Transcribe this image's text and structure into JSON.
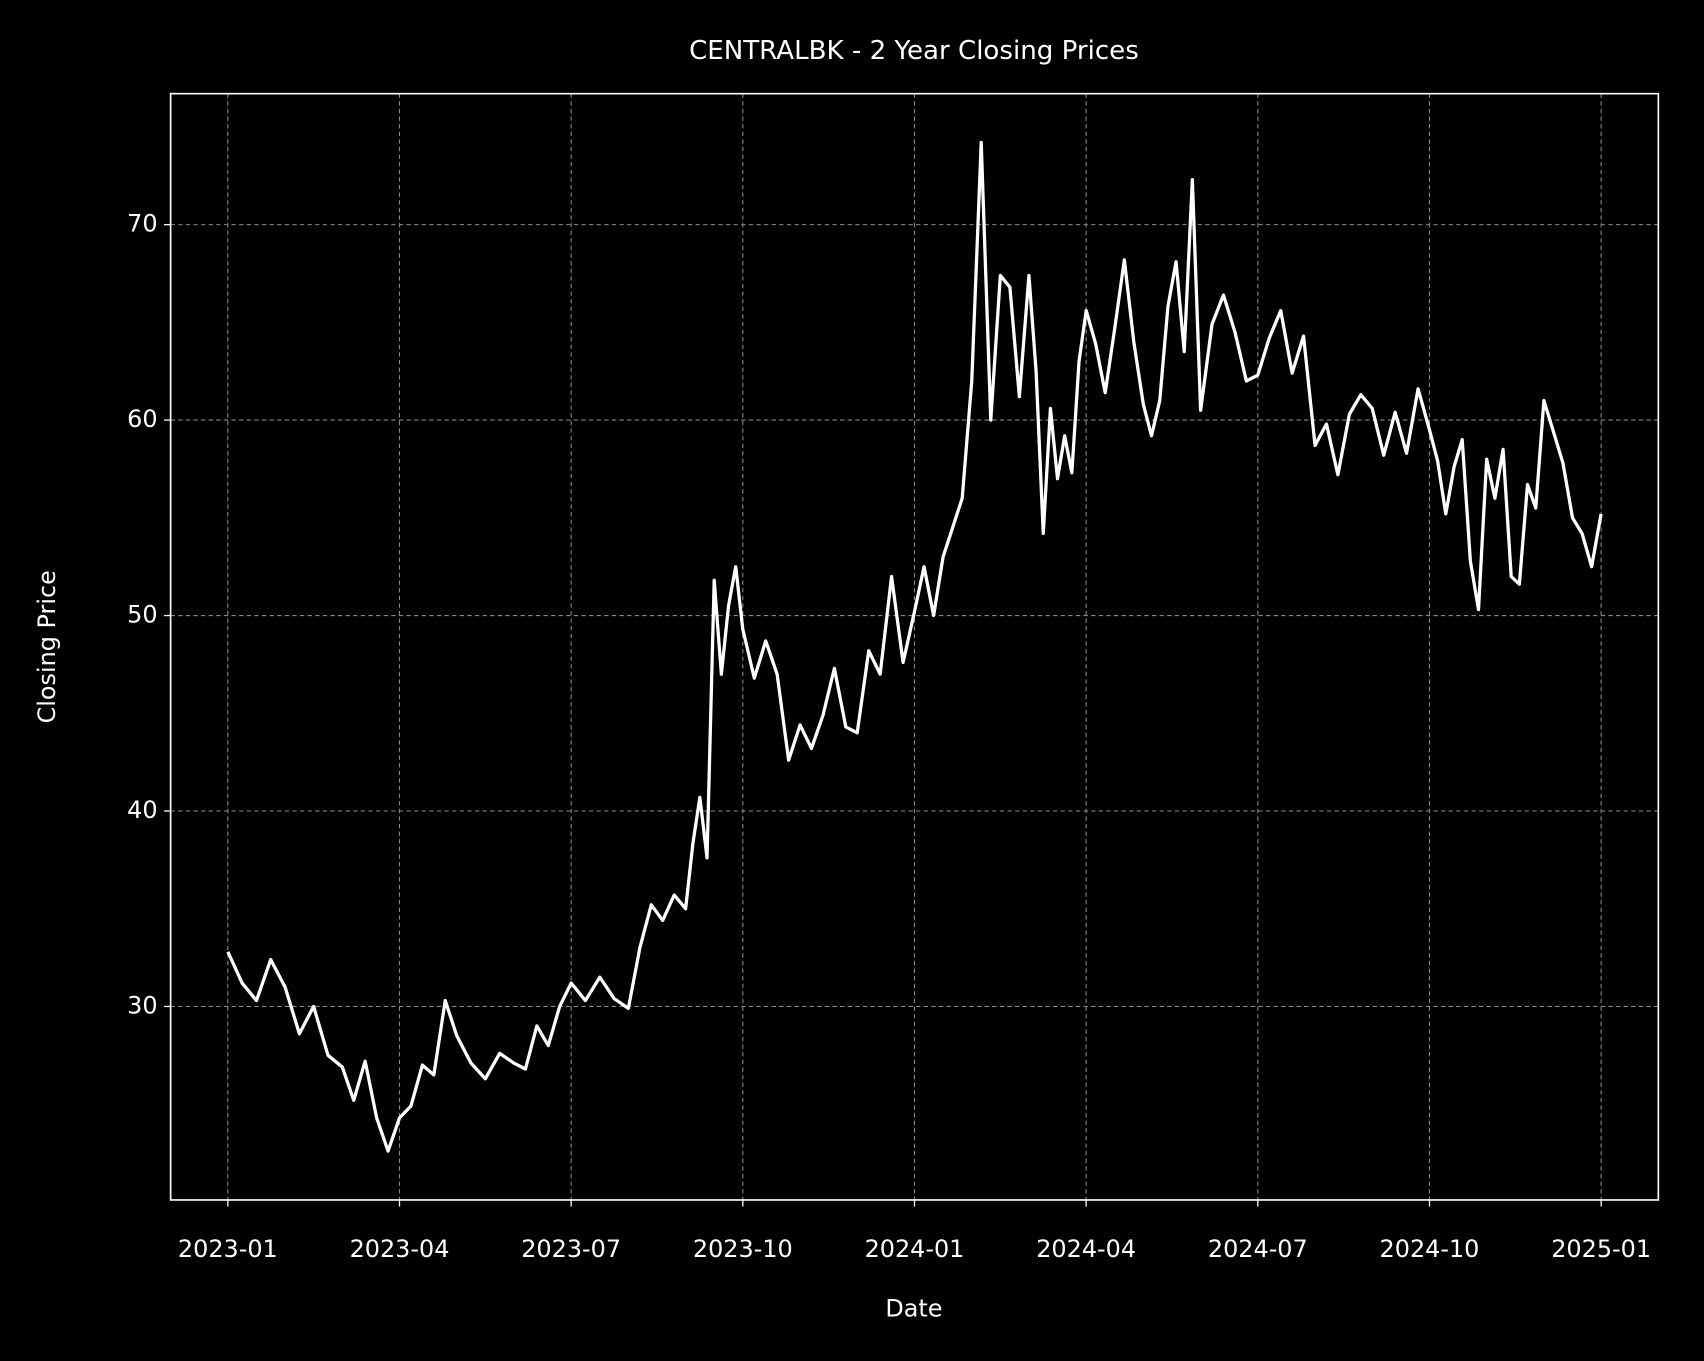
{
  "chart_data": {
    "type": "line",
    "title": "CENTRALBK - 2 Year Closing Prices",
    "x_label": "Date",
    "y_label": "Closing Price",
    "color": "#ffffff",
    "grid": true,
    "x": [
      "2023-01",
      "2023-01",
      "2023-01",
      "2023-01",
      "2023-02",
      "2023-02",
      "2023-02",
      "2023-02",
      "2023-03",
      "2023-03",
      "2023-03",
      "2023-03",
      "2023-03",
      "2023-04",
      "2023-04",
      "2023-04",
      "2023-04",
      "2023-04",
      "2023-05",
      "2023-05",
      "2023-05",
      "2023-05",
      "2023-06",
      "2023-06",
      "2023-06",
      "2023-06",
      "2023-06",
      "2023-07",
      "2023-07",
      "2023-07",
      "2023-07",
      "2023-08",
      "2023-08",
      "2023-08",
      "2023-08",
      "2023-08",
      "2023-09",
      "2023-09",
      "2023-09",
      "2023-09",
      "2023-09",
      "2023-09",
      "2023-09",
      "2023-09",
      "2023-10",
      "2023-10",
      "2023-10",
      "2023-10",
      "2023-10",
      "2023-11",
      "2023-11",
      "2023-11",
      "2023-11",
      "2023-11",
      "2023-12",
      "2023-12",
      "2023-12",
      "2023-12",
      "2023-12",
      "2024-01",
      "2024-01",
      "2024-01",
      "2024-01",
      "2024-01",
      "2024-01",
      "2024-02",
      "2024-02",
      "2024-02",
      "2024-02",
      "2024-02",
      "2024-02",
      "2024-03",
      "2024-03",
      "2024-03",
      "2024-03",
      "2024-03",
      "2024-03",
      "2024-03",
      "2024-03",
      "2024-04",
      "2024-04",
      "2024-04",
      "2024-04",
      "2024-04",
      "2024-04",
      "2024-05",
      "2024-05",
      "2024-05",
      "2024-05",
      "2024-05",
      "2024-05",
      "2024-05",
      "2024-06",
      "2024-06",
      "2024-06",
      "2024-06",
      "2024-06",
      "2024-07",
      "2024-07",
      "2024-07",
      "2024-07",
      "2024-07",
      "2024-08",
      "2024-08",
      "2024-08",
      "2024-08",
      "2024-08",
      "2024-09",
      "2024-09",
      "2024-09",
      "2024-09",
      "2024-09",
      "2024-10",
      "2024-10",
      "2024-10",
      "2024-10",
      "2024-10",
      "2024-10",
      "2024-10",
      "2024-11",
      "2024-11",
      "2024-11",
      "2024-11",
      "2024-11",
      "2024-11",
      "2024-11",
      "2024-12",
      "2024-12",
      "2024-12",
      "2024-12",
      "2024-12",
      "2024-12",
      "2025-01"
    ],
    "values": [
      32.8,
      31.2,
      30.3,
      32.4,
      31.0,
      28.6,
      30.0,
      27.5,
      26.9,
      25.2,
      27.2,
      24.3,
      22.6,
      24.3,
      24.9,
      27.0,
      26.5,
      30.3,
      28.5,
      27.1,
      26.3,
      27.6,
      27.1,
      26.8,
      29.0,
      28.0,
      30.0,
      31.2,
      30.3,
      31.5,
      30.4,
      29.9,
      33.0,
      35.2,
      34.4,
      35.7,
      35.0,
      38.3,
      40.7,
      37.6,
      51.8,
      47.0,
      50.5,
      52.5,
      49.3,
      46.8,
      48.7,
      47.0,
      42.6,
      44.4,
      43.2,
      44.9,
      47.3,
      44.3,
      44.0,
      48.2,
      47.0,
      52.0,
      47.6,
      50.2,
      52.5,
      50.0,
      53.0,
      54.5,
      56.0,
      62.0,
      74.2,
      60.0,
      67.4,
      66.8,
      61.2,
      67.4,
      62.5,
      54.2,
      60.6,
      57.0,
      59.2,
      57.3,
      63.0,
      65.6,
      63.9,
      61.4,
      64.7,
      68.2,
      64.0,
      60.8,
      59.2,
      61.0,
      65.8,
      68.1,
      63.5,
      72.3,
      60.5,
      64.9,
      66.4,
      64.5,
      62.0,
      62.3,
      64.2,
      65.6,
      62.4,
      64.3,
      58.7,
      59.8,
      57.2,
      60.3,
      61.3,
      60.6,
      58.2,
      60.4,
      58.3,
      61.6,
      59.5,
      57.9,
      55.2,
      57.6,
      59.0,
      52.8,
      50.3,
      58.0,
      56.0,
      58.5,
      52.0,
      51.6,
      56.7,
      55.5,
      61.0,
      59.4,
      57.8,
      55.0,
      54.2,
      52.5,
      55.2
    ],
    "xlim": [
      "2022-12",
      "2025-02"
    ],
    "xticks": [
      "2023-01",
      "2023-04",
      "2023-07",
      "2023-10",
      "2024-01",
      "2024-04",
      "2024-07",
      "2024-10",
      "2025-01"
    ],
    "ylim": [
      20.1,
      76.7
    ],
    "yticks": [
      30,
      40,
      50,
      60,
      70
    ]
  }
}
